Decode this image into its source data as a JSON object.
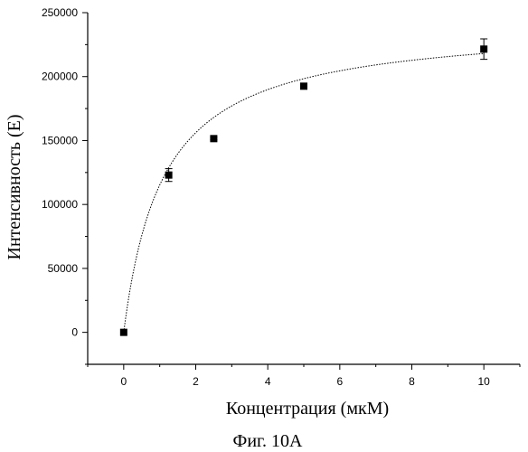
{
  "chart_data": {
    "type": "scatter",
    "xlabel": "Концентрация (мкМ)",
    "ylabel": "Интенсивность (E)",
    "xlim": [
      -1,
      11
    ],
    "ylim": [
      -25000,
      250000
    ],
    "x_ticks": [
      0,
      2,
      4,
      6,
      8,
      10
    ],
    "y_ticks": [
      0,
      50000,
      100000,
      150000,
      200000,
      250000
    ],
    "grid": false,
    "series": [
      {
        "marker": "square",
        "color": "#000000",
        "points": [
          {
            "x": 0,
            "y": 0,
            "err": 0
          },
          {
            "x": 1.25,
            "y": 123000,
            "err": 5000
          },
          {
            "x": 2.5,
            "y": 151500,
            "err": 1000
          },
          {
            "x": 5,
            "y": 192500,
            "err": 1500
          },
          {
            "x": 10,
            "y": 221500,
            "err": 8000
          }
        ]
      }
    ],
    "fit": {
      "style": "dotted",
      "model": "hyperbolic",
      "bmax": 242000,
      "kd": 1.1
    }
  },
  "caption": "Фиг. 10А"
}
